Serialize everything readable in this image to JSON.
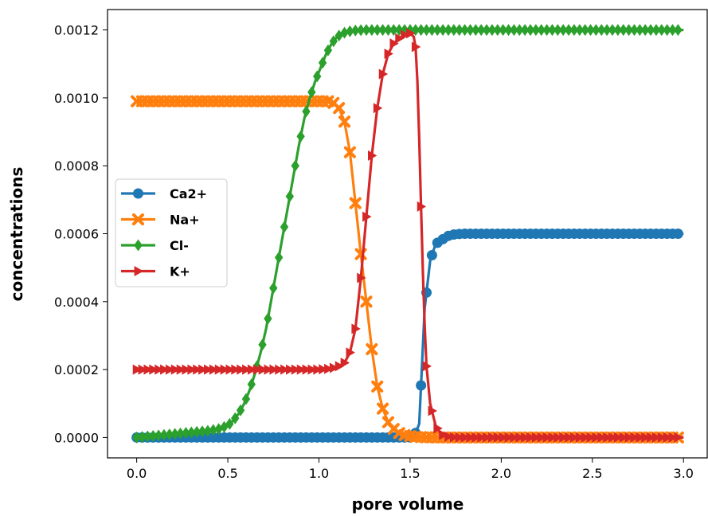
{
  "chart_data": {
    "type": "line",
    "xlabel": "pore volume",
    "ylabel": "concentrations",
    "xlim": [
      -0.16,
      3.13
    ],
    "ylim": [
      -6e-05,
      0.00126
    ],
    "xticks": [
      0.0,
      0.5,
      1.0,
      1.5,
      2.0,
      2.5,
      3.0
    ],
    "xtick_labels": [
      "0.0",
      "0.5",
      "1.0",
      "1.5",
      "2.0",
      "2.5",
      "3.0"
    ],
    "yticks": [
      0.0,
      0.0002,
      0.0004,
      0.0006,
      0.0008,
      0.001,
      0.0012
    ],
    "ytick_labels": [
      "0.0000",
      "0.0002",
      "0.0004",
      "0.0006",
      "0.0008",
      "0.0010",
      "0.0012"
    ],
    "grid": false,
    "legend_position": "center-left",
    "x_start": 0.0,
    "x_step": 0.03,
    "x_count": 100,
    "series": [
      {
        "name": "Ca2+",
        "color": "#1f77b4",
        "marker": "circle",
        "segments": [
          {
            "x": [
              0.0,
              1.52
            ],
            "y": [
              0.0,
              0.0
            ]
          },
          {
            "x": [
              1.52,
              1.55,
              1.58,
              1.61,
              1.64,
              1.67,
              1.7,
              1.73,
              1.76,
              1.8,
              2.0,
              3.0
            ],
            "y": [
              0.0,
              4e-05,
              0.00038,
              0.00052,
              0.00057,
              0.00058,
              0.000592,
              0.000597,
              0.000599,
              0.0006,
              0.0006,
              0.0006
            ]
          }
        ]
      },
      {
        "name": "Na+",
        "color": "#ff7f0e",
        "marker": "x",
        "segments": [
          {
            "x": [
              0.0,
              0.9,
              1.0,
              1.05,
              1.08,
              1.11,
              1.14,
              1.17,
              1.2,
              1.23,
              1.26,
              1.29,
              1.32,
              1.35,
              1.38,
              1.41,
              1.44,
              1.47,
              1.5,
              1.53,
              1.56,
              1.59,
              1.62,
              1.65,
              1.7,
              3.0
            ],
            "y": [
              0.00099,
              0.00099,
              0.00099,
              0.00099,
              0.000985,
              0.00097,
              0.00093,
              0.00084,
              0.00069,
              0.00054,
              0.0004,
              0.00026,
              0.00015,
              8.5e-05,
              4.5e-05,
              2.5e-05,
              1.3e-05,
              7e-06,
              4e-06,
              2e-06,
              1.2e-06,
              6e-07,
              3e-07,
              0.0,
              0.0,
              0.0
            ]
          }
        ]
      },
      {
        "name": "Cl-",
        "color": "#2ca02c",
        "marker": "diamond",
        "segments": [
          {
            "x": [
              0.0,
              0.1,
              0.2,
              0.3,
              0.4,
              0.45,
              0.5,
              0.53,
              0.56,
              0.59,
              0.62,
              0.65,
              0.68,
              0.71,
              0.74,
              0.77,
              0.8,
              0.83,
              0.86,
              0.89,
              0.92,
              0.95,
              0.98,
              1.01,
              1.04,
              1.07,
              1.1,
              1.13,
              1.16,
              1.19,
              1.22,
              1.25,
              1.28,
              1.31,
              1.34,
              1.4,
              1.5,
              3.0
            ],
            "y": [
              0.0,
              5e-06,
              1e-05,
              1.5e-05,
              2e-05,
              2.5e-05,
              3.5e-05,
              5e-05,
              7e-05,
              0.0001,
              0.00014,
              0.00019,
              0.00025,
              0.00032,
              0.00041,
              0.0005,
              0.00059,
              0.00068,
              0.00077,
              0.00086,
              0.00094,
              0.001,
              0.00105,
              0.00109,
              0.00113,
              0.00116,
              0.00118,
              0.00119,
              0.001195,
              0.001198,
              0.001199,
              0.0012,
              0.0012,
              0.0012,
              0.0012,
              0.0012,
              0.0012,
              0.0012
            ]
          }
        ]
      },
      {
        "name": "K+",
        "color": "#d62728",
        "marker": "triangle-right",
        "segments": [
          {
            "x": [
              0.0,
              1.0,
              1.05,
              1.08,
              1.11,
              1.14,
              1.17,
              1.2,
              1.23,
              1.26,
              1.29,
              1.32,
              1.35,
              1.38,
              1.41,
              1.44,
              1.47,
              1.5,
              1.52,
              1.53,
              1.54,
              1.55,
              1.56,
              1.57,
              1.58,
              1.59,
              1.61,
              1.64,
              1.67,
              1.7,
              1.75,
              3.0
            ],
            "y": [
              0.0002,
              0.0002,
              0.000202,
              0.000205,
              0.00021,
              0.00022,
              0.00025,
              0.00032,
              0.00047,
              0.00065,
              0.00083,
              0.00097,
              0.00107,
              0.00113,
              0.00116,
              0.001175,
              0.001185,
              0.00119,
              0.00118,
              0.00115,
              0.00105,
              0.00088,
              0.00068,
              0.00049,
              0.00033,
              0.00021,
              0.0001,
              3.5e-05,
              1e-05,
              3e-06,
              0.0,
              0.0
            ]
          }
        ]
      }
    ]
  }
}
